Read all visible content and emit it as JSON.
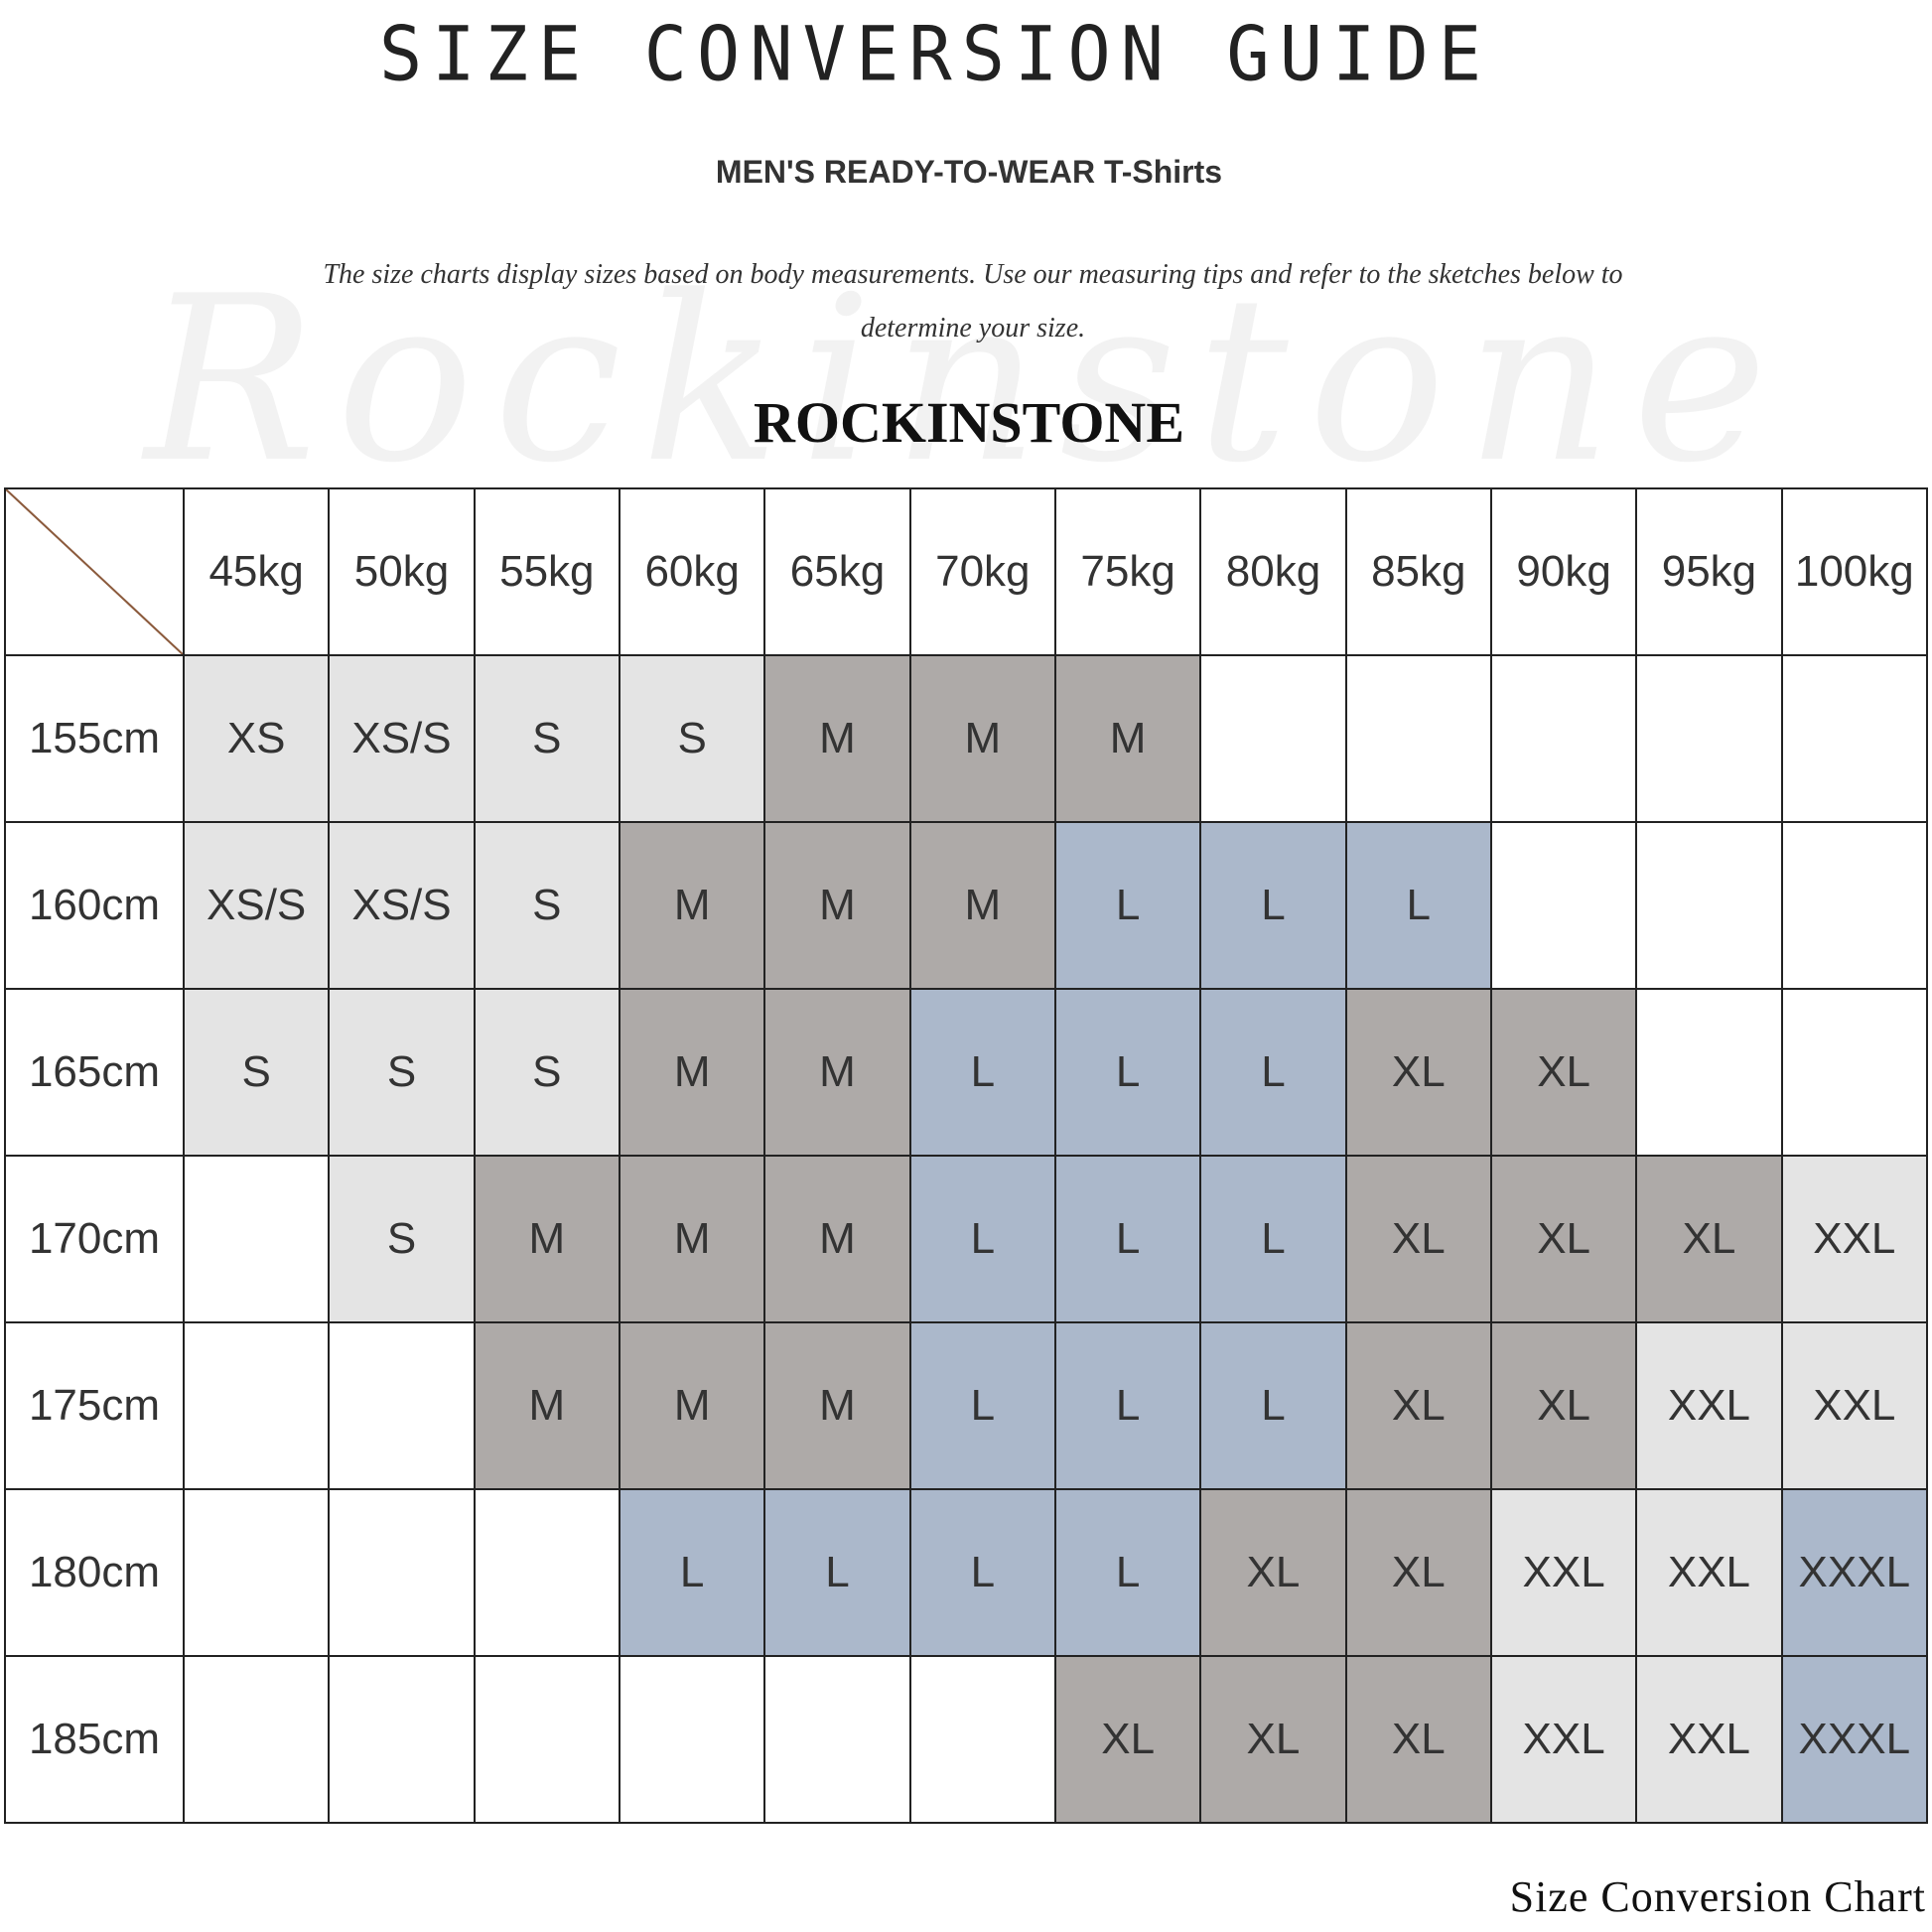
{
  "title": "SIZE CONVERSION GUIDE",
  "subtitle": "MEN'S READY-TO-WEAR T-Shirts",
  "description": "The size charts display sizes based on body measurements. Use our measuring tips and refer to the sketches below to determine your size.",
  "watermark": "Rockinstone",
  "brand": "ROCKINSTONE",
  "caption": "Size Conversion Chart",
  "colors": {
    "light": "#e4e4e4",
    "dark": "#aeaaa8",
    "blue": "#abb8cb",
    "border": "#222222",
    "diagonal": "#8b5a3c"
  },
  "size_colors": {
    "XS": "light",
    "XS/S": "light",
    "S": "light",
    "M": "dark",
    "L": "blue",
    "XL": "dark",
    "XXL": "light",
    "XXXL": "blue"
  },
  "chart_data": {
    "type": "table",
    "columns": [
      "45kg",
      "50kg",
      "55kg",
      "60kg",
      "65kg",
      "70kg",
      "75kg",
      "80kg",
      "85kg",
      "90kg",
      "95kg",
      "100kg"
    ],
    "rows": [
      {
        "label": "155cm",
        "values": [
          "XS",
          "XS/S",
          "S",
          "S",
          "M",
          "M",
          "M",
          "",
          "",
          "",
          "",
          ""
        ]
      },
      {
        "label": "160cm",
        "values": [
          "XS/S",
          "XS/S",
          "S",
          "M",
          "M",
          "M",
          "L",
          "L",
          "L",
          "",
          "",
          ""
        ]
      },
      {
        "label": "165cm",
        "values": [
          "S",
          "S",
          "S",
          "M",
          "M",
          "L",
          "L",
          "L",
          "XL",
          "XL",
          "",
          ""
        ]
      },
      {
        "label": "170cm",
        "values": [
          "",
          "S",
          "M",
          "M",
          "M",
          "L",
          "L",
          "L",
          "XL",
          "XL",
          "XL",
          "XXL"
        ]
      },
      {
        "label": "175cm",
        "values": [
          "",
          "",
          "M",
          "M",
          "M",
          "L",
          "L",
          "L",
          "XL",
          "XL",
          "XXL",
          "XXL"
        ]
      },
      {
        "label": "180cm",
        "values": [
          "",
          "",
          "",
          "L",
          "L",
          "L",
          "L",
          "XL",
          "XL",
          "XXL",
          "XXL",
          "XXXL"
        ]
      },
      {
        "label": "185cm",
        "values": [
          "",
          "",
          "",
          "",
          "",
          "",
          "XL",
          "XL",
          "XL",
          "XXL",
          "XXL",
          "XXXL"
        ]
      }
    ]
  }
}
